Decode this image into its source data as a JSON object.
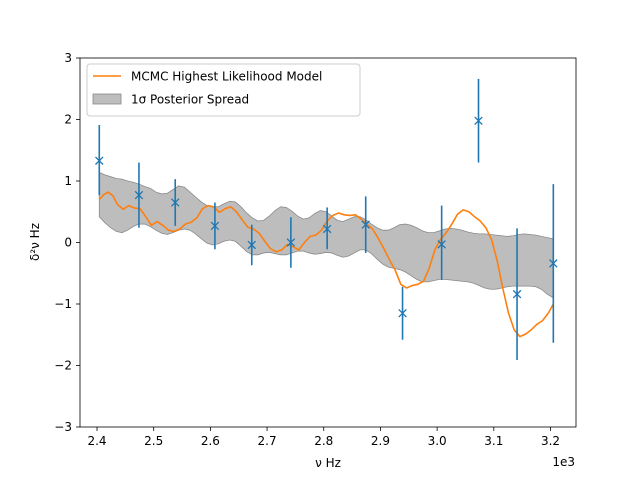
{
  "chart_data": {
    "type": "line",
    "title": "",
    "xlabel": "ν Hz",
    "ylabel": "δ²ν Hz",
    "x_offset_label": "1e3",
    "xlim": [
      2.37,
      3.245
    ],
    "ylim": [
      -3,
      3
    ],
    "x_ticks": [
      2.4,
      2.5,
      2.6,
      2.7,
      2.8,
      2.9,
      3.0,
      3.1,
      3.2
    ],
    "x_tick_labels": [
      "2.4",
      "2.5",
      "2.6",
      "2.7",
      "2.8",
      "2.9",
      "3.0",
      "3.1",
      "3.2"
    ],
    "y_ticks": [
      -3,
      -2,
      -1,
      0,
      1,
      2,
      3
    ],
    "y_tick_labels": [
      "−3",
      "−2",
      "−1",
      "0",
      "1",
      "2",
      "3"
    ],
    "grid": false,
    "legend": {
      "placement": "top-left",
      "entries": [
        {
          "label": "MCMC Highest Likelihood Model",
          "kind": "line",
          "color": "#ff7f0e"
        },
        {
          "label": "1σ Posterior Spread",
          "kind": "patch",
          "color": "#999999"
        }
      ]
    },
    "observations": {
      "color": "#1f77b4",
      "marker": "x",
      "x": [
        2.404,
        2.474,
        2.538,
        2.608,
        2.673,
        2.742,
        2.806,
        2.874,
        2.939,
        3.008,
        3.073,
        3.141,
        3.205
      ],
      "y": [
        1.33,
        0.77,
        0.65,
        0.27,
        -0.04,
        0.0,
        0.22,
        0.29,
        -1.15,
        -0.03,
        1.98,
        -0.84,
        -0.34
      ],
      "err_low": [
        0.56,
        0.53,
        0.38,
        0.38,
        0.33,
        0.41,
        0.33,
        0.46,
        0.43,
        0.58,
        0.68,
        1.07,
        1.29
      ],
      "err_high": [
        0.58,
        0.53,
        0.38,
        0.38,
        0.33,
        0.41,
        0.35,
        0.46,
        0.43,
        0.63,
        0.68,
        1.07,
        1.29
      ]
    },
    "model": {
      "name": "MCMC Highest Likelihood Model",
      "color": "#ff7f0e",
      "x": [
        2.404,
        2.412,
        2.42,
        2.428,
        2.436,
        2.446,
        2.456,
        2.466,
        2.476,
        2.486,
        2.496,
        2.506,
        2.516,
        2.526,
        2.536,
        2.546,
        2.556,
        2.566,
        2.576,
        2.586,
        2.596,
        2.606,
        2.616,
        2.626,
        2.636,
        2.646,
        2.656,
        2.666,
        2.676,
        2.686,
        2.696,
        2.706,
        2.716,
        2.726,
        2.736,
        2.746,
        2.756,
        2.766,
        2.776,
        2.786,
        2.796,
        2.806,
        2.816,
        2.826,
        2.836,
        2.846,
        2.856,
        2.866,
        2.876,
        2.886,
        2.896,
        2.906,
        2.916,
        2.926,
        2.936,
        2.946,
        2.956,
        2.966,
        2.976,
        2.986,
        2.996,
        3.006,
        3.016,
        3.026,
        3.036,
        3.046,
        3.056,
        3.066,
        3.076,
        3.086,
        3.096,
        3.106,
        3.116,
        3.126,
        3.136,
        3.146,
        3.156,
        3.166,
        3.176,
        3.186,
        3.196,
        3.205
      ],
      "y": [
        0.7,
        0.78,
        0.82,
        0.76,
        0.62,
        0.54,
        0.6,
        0.56,
        0.55,
        0.42,
        0.28,
        0.34,
        0.28,
        0.2,
        0.18,
        0.22,
        0.3,
        0.33,
        0.4,
        0.55,
        0.6,
        0.58,
        0.49,
        0.55,
        0.58,
        0.5,
        0.37,
        0.25,
        0.22,
        0.15,
        0.02,
        -0.1,
        -0.15,
        -0.12,
        -0.03,
        -0.07,
        -0.12,
        0.0,
        0.1,
        0.12,
        0.2,
        0.35,
        0.44,
        0.48,
        0.45,
        0.44,
        0.45,
        0.38,
        0.3,
        0.22,
        0.07,
        -0.1,
        -0.28,
        -0.45,
        -0.68,
        -0.74,
        -0.7,
        -0.68,
        -0.63,
        -0.42,
        -0.12,
        0.05,
        0.16,
        0.3,
        0.46,
        0.53,
        0.5,
        0.42,
        0.35,
        0.24,
        0.05,
        -0.3,
        -0.75,
        -1.15,
        -1.42,
        -1.53,
        -1.49,
        -1.42,
        -1.33,
        -1.27,
        -1.15,
        -1.0
      ]
    },
    "posterior_band": {
      "name": "1σ Posterior Spread",
      "color": "#999999",
      "x": [
        2.404,
        2.414,
        2.424,
        2.434,
        2.444,
        2.454,
        2.464,
        2.474,
        2.484,
        2.494,
        2.504,
        2.514,
        2.524,
        2.534,
        2.544,
        2.554,
        2.564,
        2.574,
        2.584,
        2.594,
        2.604,
        2.614,
        2.624,
        2.634,
        2.644,
        2.654,
        2.664,
        2.674,
        2.684,
        2.694,
        2.704,
        2.714,
        2.724,
        2.734,
        2.744,
        2.754,
        2.764,
        2.774,
        2.784,
        2.794,
        2.804,
        2.814,
        2.824,
        2.834,
        2.844,
        2.854,
        2.864,
        2.874,
        2.884,
        2.894,
        2.904,
        2.914,
        2.924,
        2.934,
        2.944,
        2.954,
        2.964,
        2.974,
        2.984,
        2.994,
        3.004,
        3.014,
        3.024,
        3.034,
        3.044,
        3.054,
        3.064,
        3.074,
        3.084,
        3.094,
        3.104,
        3.114,
        3.124,
        3.134,
        3.144,
        3.154,
        3.164,
        3.174,
        3.184,
        3.194,
        3.205
      ],
      "upper": [
        1.14,
        1.1,
        1.07,
        1.04,
        1.03,
        1.0,
        0.98,
        0.95,
        0.91,
        0.88,
        0.82,
        0.79,
        0.8,
        0.86,
        0.92,
        0.9,
        0.82,
        0.74,
        0.66,
        0.6,
        0.58,
        0.58,
        0.63,
        0.67,
        0.66,
        0.58,
        0.48,
        0.4,
        0.35,
        0.36,
        0.43,
        0.52,
        0.58,
        0.57,
        0.51,
        0.43,
        0.38,
        0.4,
        0.47,
        0.52,
        0.5,
        0.43,
        0.36,
        0.34,
        0.38,
        0.42,
        0.42,
        0.37,
        0.3,
        0.24,
        0.2,
        0.2,
        0.24,
        0.29,
        0.3,
        0.28,
        0.24,
        0.19,
        0.16,
        0.16,
        0.19,
        0.22,
        0.23,
        0.22,
        0.2,
        0.17,
        0.15,
        0.14,
        0.14,
        0.13,
        0.12,
        0.11,
        0.1,
        0.11,
        0.13,
        0.14,
        0.13,
        0.12,
        0.1,
        0.08,
        0.06
      ],
      "lower": [
        0.42,
        0.32,
        0.24,
        0.18,
        0.16,
        0.2,
        0.26,
        0.3,
        0.3,
        0.26,
        0.2,
        0.15,
        0.13,
        0.16,
        0.2,
        0.22,
        0.2,
        0.14,
        0.06,
        -0.01,
        -0.04,
        -0.02,
        0.02,
        0.04,
        0.02,
        -0.06,
        -0.15,
        -0.2,
        -0.2,
        -0.17,
        -0.16,
        -0.18,
        -0.2,
        -0.2,
        -0.17,
        -0.14,
        -0.14,
        -0.17,
        -0.19,
        -0.18,
        -0.16,
        -0.17,
        -0.21,
        -0.24,
        -0.22,
        -0.17,
        -0.12,
        -0.12,
        -0.18,
        -0.27,
        -0.35,
        -0.4,
        -0.42,
        -0.44,
        -0.48,
        -0.54,
        -0.6,
        -0.64,
        -0.64,
        -0.62,
        -0.6,
        -0.6,
        -0.61,
        -0.62,
        -0.63,
        -0.64,
        -0.66,
        -0.7,
        -0.74,
        -0.76,
        -0.76,
        -0.74,
        -0.72,
        -0.71,
        -0.71,
        -0.71,
        -0.71,
        -0.72,
        -0.76,
        -0.84,
        -0.9
      ]
    }
  }
}
